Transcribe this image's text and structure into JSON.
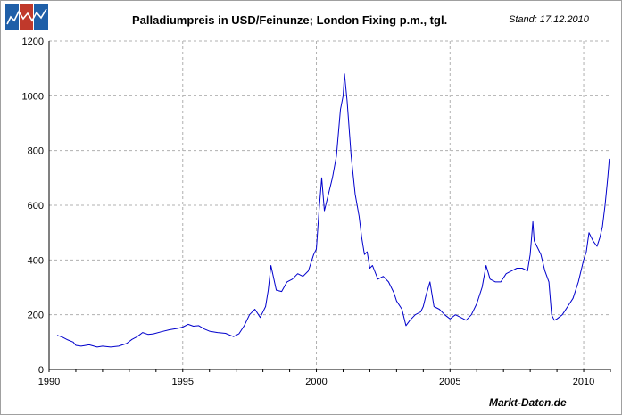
{
  "header": {
    "title": "Palladiumpreis in USD/Feinunze; London Fixing p.m., tgl.",
    "stand": "Stand: 17.12.2010"
  },
  "footer": {
    "source": "Markt-Daten.de"
  },
  "logo": {
    "icon": "chart-logo-icon",
    "colors": [
      "#1f5fa8",
      "#c0392b",
      "#1f5fa8"
    ]
  },
  "colors": {
    "line": "#0000cc",
    "grid": "#b0b0b0",
    "axis": "#000000"
  },
  "chart_data": {
    "type": "line",
    "title": "Palladiumpreis in USD/Feinunze; London Fixing p.m., tgl.",
    "xlabel": "",
    "ylabel": "",
    "xlim": [
      1990,
      2011
    ],
    "ylim": [
      0,
      1200
    ],
    "x_ticks": [
      "1990",
      "1995",
      "2000",
      "2005",
      "2010"
    ],
    "y_ticks": [
      "0",
      "200",
      "400",
      "600",
      "800",
      "1000",
      "1200"
    ],
    "grid": true,
    "legend": "none",
    "series": [
      {
        "x": [
          1990.3,
          1990.5,
          1990.7,
          1990.9,
          1991.0,
          1991.2,
          1991.5,
          1991.8,
          1992.0,
          1992.3,
          1992.6,
          1992.9,
          1993.1,
          1993.3,
          1993.5,
          1993.7,
          1993.9,
          1994.2,
          1994.5,
          1994.8,
          1995.0,
          1995.2,
          1995.4,
          1995.6,
          1995.8,
          1996.0,
          1996.3,
          1996.6,
          1996.9,
          1997.1,
          1997.3,
          1997.5,
          1997.7,
          1997.9,
          1998.1,
          1998.2,
          1998.3,
          1998.5,
          1998.7,
          1998.9,
          1999.1,
          1999.3,
          1999.5,
          1999.7,
          1999.9,
          2000.0,
          2000.1,
          2000.2,
          2000.3,
          2000.45,
          2000.6,
          2000.75,
          2000.9,
          2001.0,
          2001.05,
          2001.15,
          2001.3,
          2001.45,
          2001.6,
          2001.7,
          2001.8,
          2001.9,
          2002.0,
          2002.1,
          2002.3,
          2002.5,
          2002.7,
          2002.9,
          2003.0,
          2003.2,
          2003.35,
          2003.5,
          2003.7,
          2003.9,
          2004.0,
          2004.1,
          2004.25,
          2004.4,
          2004.6,
          2004.8,
          2005.0,
          2005.2,
          2005.4,
          2005.6,
          2005.8,
          2006.0,
          2006.2,
          2006.35,
          2006.5,
          2006.7,
          2006.9,
          2007.1,
          2007.3,
          2007.5,
          2007.7,
          2007.9,
          2008.0,
          2008.1,
          2008.15,
          2008.25,
          2008.4,
          2008.55,
          2008.7,
          2008.8,
          2008.9,
          2009.0,
          2009.2,
          2009.4,
          2009.6,
          2009.8,
          2010.0,
          2010.1,
          2010.2,
          2010.35,
          2010.5,
          2010.6,
          2010.7,
          2010.8,
          2010.9,
          2010.96
        ],
        "y": [
          125,
          118,
          108,
          100,
          88,
          85,
          90,
          82,
          85,
          82,
          85,
          95,
          110,
          120,
          135,
          128,
          130,
          138,
          145,
          150,
          155,
          165,
          158,
          160,
          148,
          140,
          135,
          132,
          120,
          130,
          160,
          200,
          220,
          190,
          230,
          290,
          380,
          290,
          285,
          320,
          330,
          350,
          340,
          360,
          420,
          440,
          580,
          700,
          580,
          640,
          700,
          780,
          950,
          1000,
          1080,
          980,
          780,
          640,
          560,
          480,
          420,
          430,
          370,
          380,
          330,
          340,
          320,
          280,
          250,
          220,
          160,
          180,
          200,
          210,
          230,
          270,
          320,
          230,
          220,
          200,
          185,
          200,
          190,
          180,
          200,
          240,
          300,
          380,
          330,
          320,
          320,
          350,
          360,
          370,
          370,
          360,
          420,
          540,
          470,
          450,
          420,
          360,
          320,
          200,
          180,
          185,
          200,
          230,
          260,
          320,
          400,
          430,
          500,
          470,
          450,
          480,
          520,
          600,
          700,
          770
        ]
      }
    ]
  }
}
